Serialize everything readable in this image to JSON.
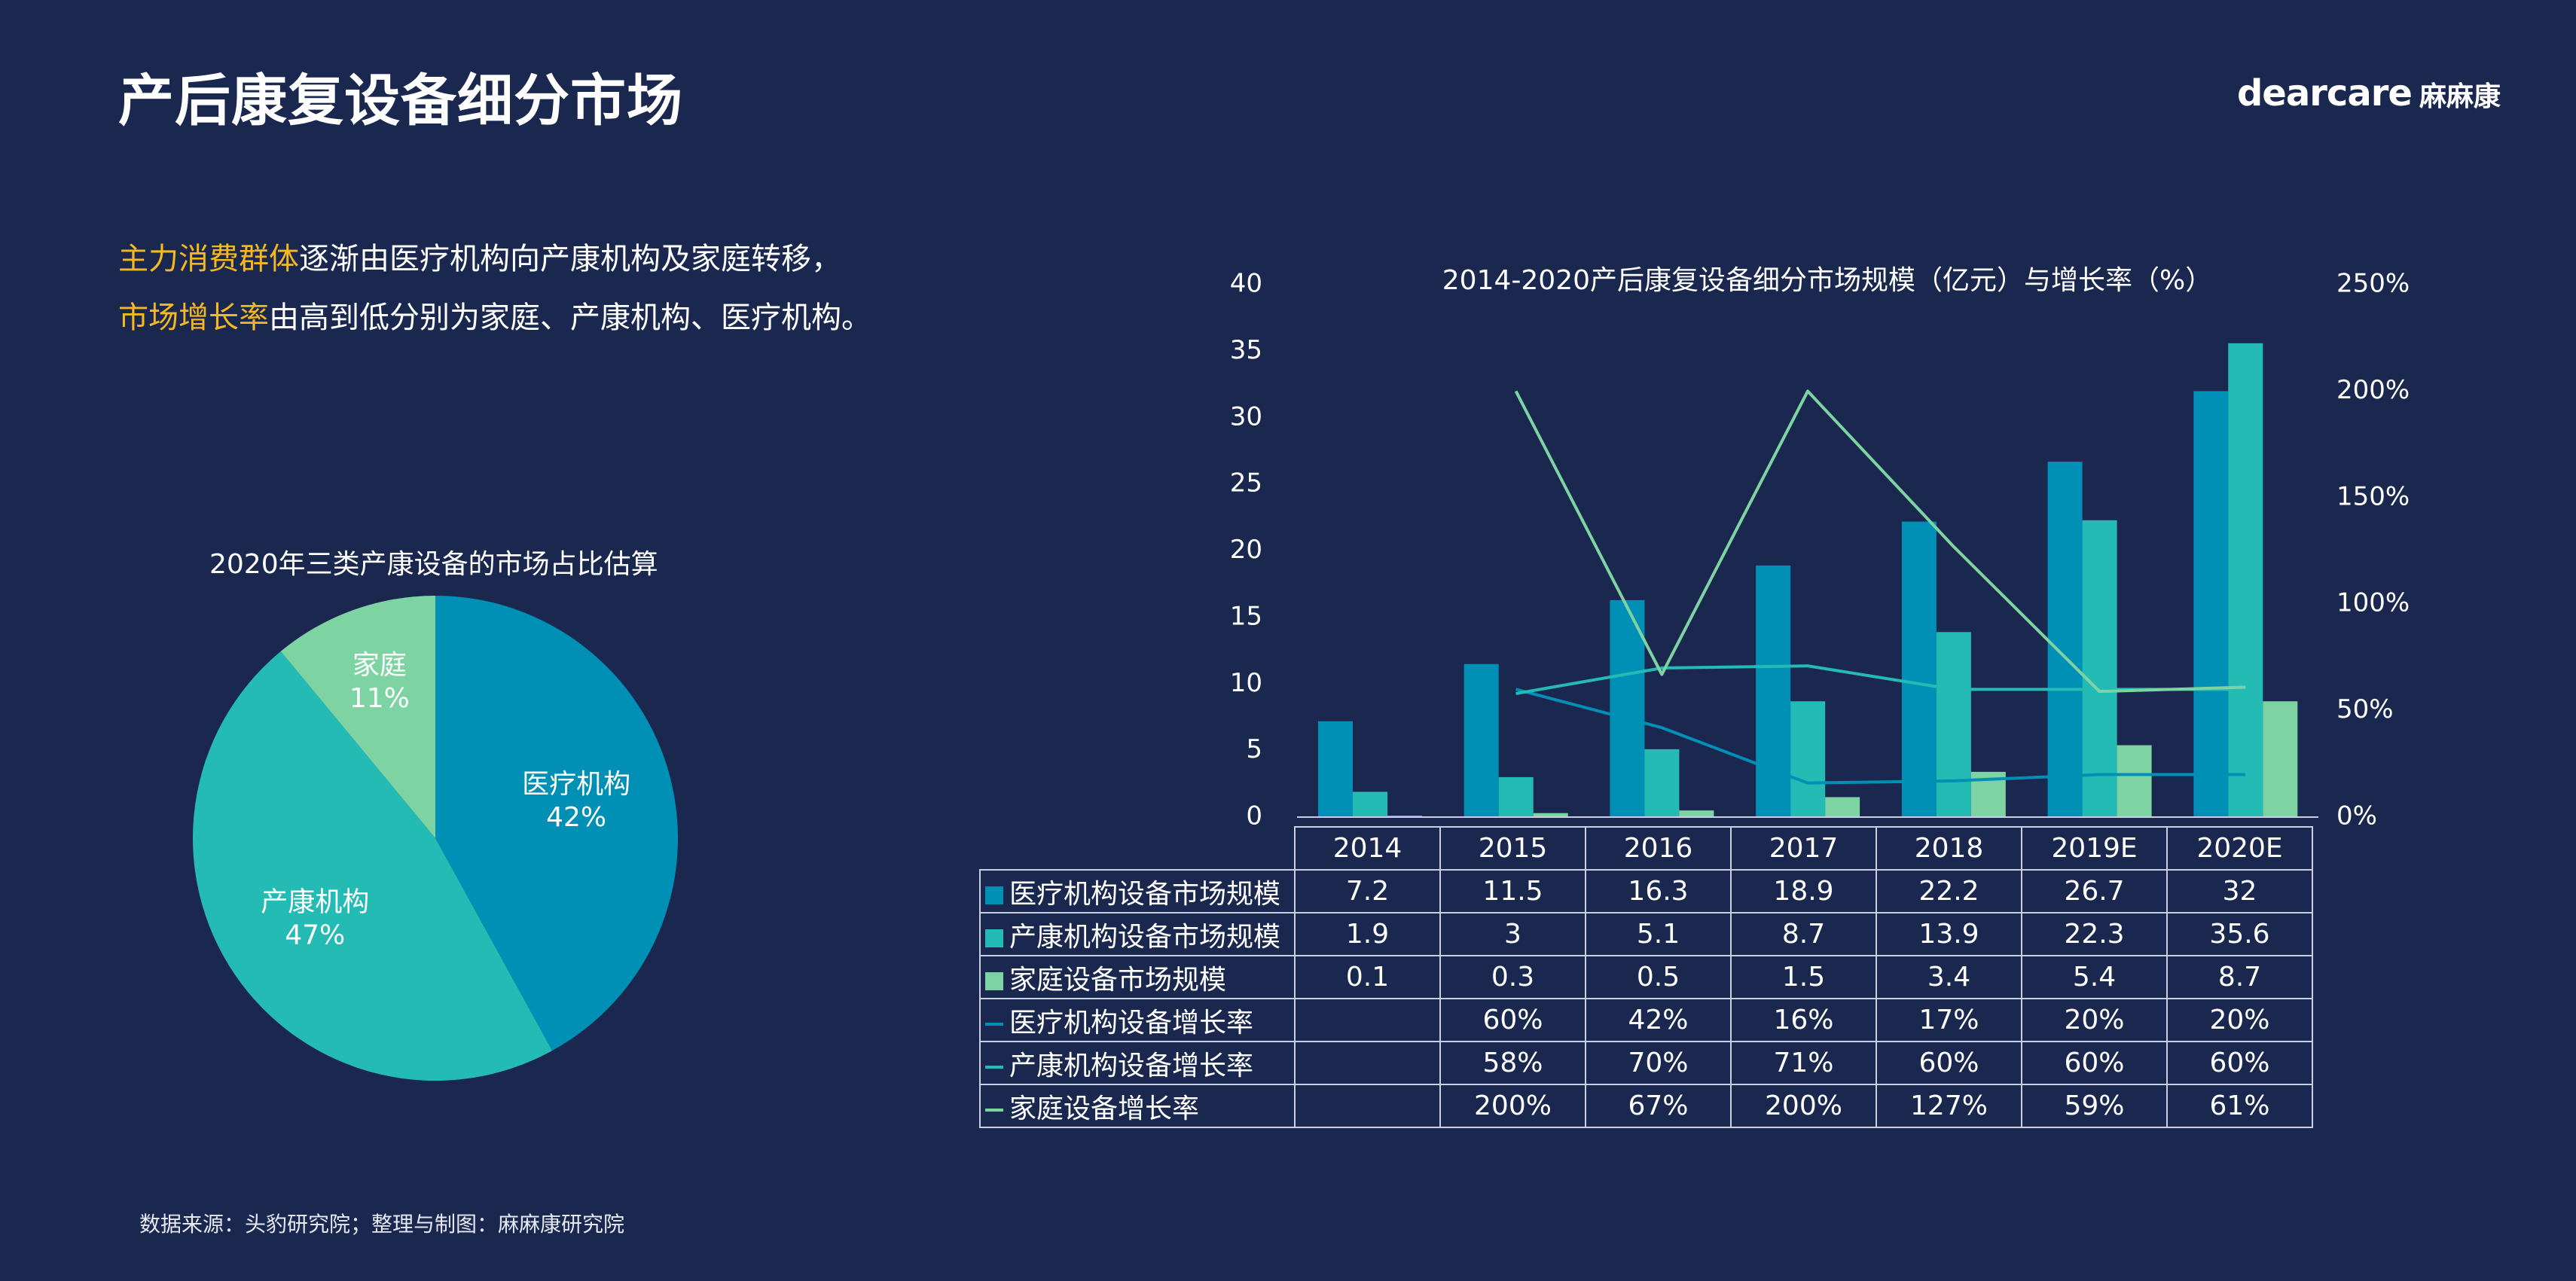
{
  "page": {
    "title": "产后康复设备细分市场",
    "brand_logo": "dearcare",
    "brand_cn": "麻麻康",
    "intro_line1_highlight": "主力消费群体",
    "intro_line1_text": "逐渐由医疗机构向产康机构及家庭转移，",
    "intro_line2_highlight": "市场增长率",
    "intro_line2_text": "由高到低分别为家庭、产康机构、医疗机构。",
    "source": "数据来源：头豹研究院；整理与制图：麻麻康研究院"
  },
  "colors": {
    "background": "#1a2850",
    "medical": "#0090b5",
    "postpartum": "#24bbb5",
    "home": "#7dd3a2",
    "highlight": "#f5b820"
  },
  "chart_data": [
    {
      "type": "pie",
      "title": "2020年三类产康设备的市场占比估算",
      "labels": [
        "医疗机构",
        "产康机构",
        "家庭"
      ],
      "values": [
        42,
        47,
        11
      ],
      "value_labels": [
        "42%",
        "47%",
        "11%"
      ]
    },
    {
      "type": "bar",
      "title": "2014-2020产后康复设备细分市场规模（亿元）与增长率（%）",
      "categories": [
        "2014",
        "2015",
        "2016",
        "2017",
        "2018",
        "2019E",
        "2020E"
      ],
      "ylim": [
        0,
        40
      ],
      "y_ticks": [
        "0",
        "5",
        "10",
        "15",
        "20",
        "25",
        "30",
        "35",
        "40"
      ],
      "y2lim": [
        0,
        250
      ],
      "y2_ticks": [
        "0%",
        "50%",
        "100%",
        "150%",
        "200%",
        "250%"
      ],
      "series": [
        {
          "name": "医疗机构设备市场规模",
          "kind": "bar",
          "values": [
            7.2,
            11.5,
            16.3,
            18.9,
            22.2,
            26.7,
            32
          ],
          "display": [
            "7.2",
            "11.5",
            "16.3",
            "18.9",
            "22.2",
            "26.7",
            "32"
          ]
        },
        {
          "name": "产康机构设备市场规模",
          "kind": "bar",
          "values": [
            1.9,
            3,
            5.1,
            8.7,
            13.9,
            22.3,
            35.6
          ],
          "display": [
            "1.9",
            "3",
            "5.1",
            "8.7",
            "13.9",
            "22.3",
            "35.6"
          ]
        },
        {
          "name": "家庭设备市场规模",
          "kind": "bar",
          "values": [
            0.1,
            0.3,
            0.5,
            1.5,
            3.4,
            5.4,
            8.7
          ],
          "display": [
            "0.1",
            "0.3",
            "0.5",
            "1.5",
            "3.4",
            "5.4",
            "8.7"
          ]
        },
        {
          "name": "医疗机构设备增长率",
          "kind": "line",
          "values": [
            null,
            60,
            42,
            16,
            17,
            20,
            20
          ],
          "display": [
            "",
            "60%",
            "42%",
            "16%",
            "17%",
            "20%",
            "20%"
          ]
        },
        {
          "name": "产康机构设备增长率",
          "kind": "line",
          "values": [
            null,
            58,
            70,
            71,
            60,
            60,
            60
          ],
          "display": [
            "",
            "58%",
            "70%",
            "71%",
            "60%",
            "60%",
            "60%"
          ]
        },
        {
          "name": "家庭设备增长率",
          "kind": "line",
          "values": [
            null,
            200,
            67,
            200,
            127,
            59,
            61
          ],
          "display": [
            "",
            "200%",
            "67%",
            "200%",
            "127%",
            "59%",
            "61%"
          ]
        }
      ]
    }
  ]
}
